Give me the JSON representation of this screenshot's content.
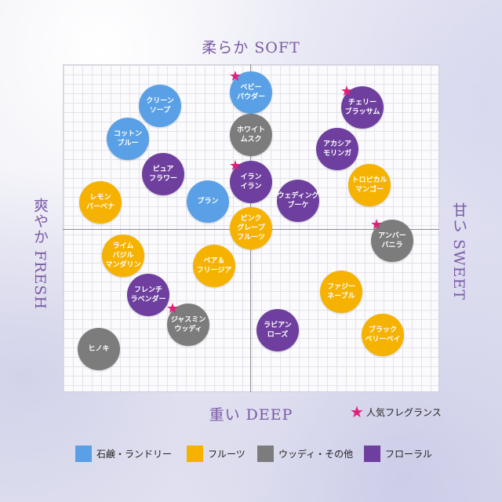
{
  "axes": {
    "top": "柔らか SOFT",
    "bottom": "重い DEEP",
    "left": "爽やか FRESH",
    "right": "甘い SWEET"
  },
  "popular_label": "人気フレグランス",
  "colors": {
    "soap": "#5aa0e6",
    "fruit": "#f6b200",
    "woody": "#7c7c7c",
    "floral": "#6e3f9e",
    "star": "#e01f7a"
  },
  "legend": [
    {
      "label": "石鹸・ランドリー",
      "color": "#5aa0e6"
    },
    {
      "label": "フルーツ",
      "color": "#f6b200"
    },
    {
      "label": "ウッディ・その他",
      "color": "#7c7c7c"
    },
    {
      "label": "フローラル",
      "color": "#6e3f9e"
    }
  ],
  "fragrances": [
    {
      "name": "ベビー\nパウダー",
      "category": "soap",
      "popular": true
    },
    {
      "name": "クリーン\nソープ",
      "category": "soap",
      "popular": false
    },
    {
      "name": "コットン\nブルー",
      "category": "soap",
      "popular": false
    },
    {
      "name": "ブラン",
      "category": "soap",
      "popular": false
    },
    {
      "name": "ホワイト\nムスク",
      "category": "woody",
      "popular": false
    },
    {
      "name": "アンバー\nバニラ",
      "category": "woody",
      "popular": true
    },
    {
      "name": "ジャスミン\nウッディ",
      "category": "woody",
      "popular": true
    },
    {
      "name": "ヒノキ",
      "category": "woody",
      "popular": false
    },
    {
      "name": "チェリー\nブラッサム",
      "category": "floral",
      "popular": true
    },
    {
      "name": "アカシア\nモリンガ",
      "category": "floral",
      "popular": false
    },
    {
      "name": "ピュア\nフラワー",
      "category": "floral",
      "popular": false
    },
    {
      "name": "イラン\nイラン",
      "category": "floral",
      "popular": true
    },
    {
      "name": "ウェディング\nブーケ",
      "category": "floral",
      "popular": false
    },
    {
      "name": "フレンチ\nラベンダー",
      "category": "floral",
      "popular": false
    },
    {
      "name": "ラビアン\nローズ",
      "category": "floral",
      "popular": false
    },
    {
      "name": "トロピカル\nマンゴー",
      "category": "fruit",
      "popular": false
    },
    {
      "name": "レモン\nバーベナ",
      "category": "fruit",
      "popular": false
    },
    {
      "name": "ピンク\nグレープ\nフルーツ",
      "category": "fruit",
      "popular": false
    },
    {
      "name": "ライム\nバジル\nマンダリン",
      "category": "fruit",
      "popular": false
    },
    {
      "name": "ペア＆\nフリージア",
      "category": "fruit",
      "popular": false
    },
    {
      "name": "ファジー\nネーブル",
      "category": "fruit",
      "popular": false
    },
    {
      "name": "ブラック\nベリーベイ",
      "category": "fruit",
      "popular": false
    }
  ]
}
